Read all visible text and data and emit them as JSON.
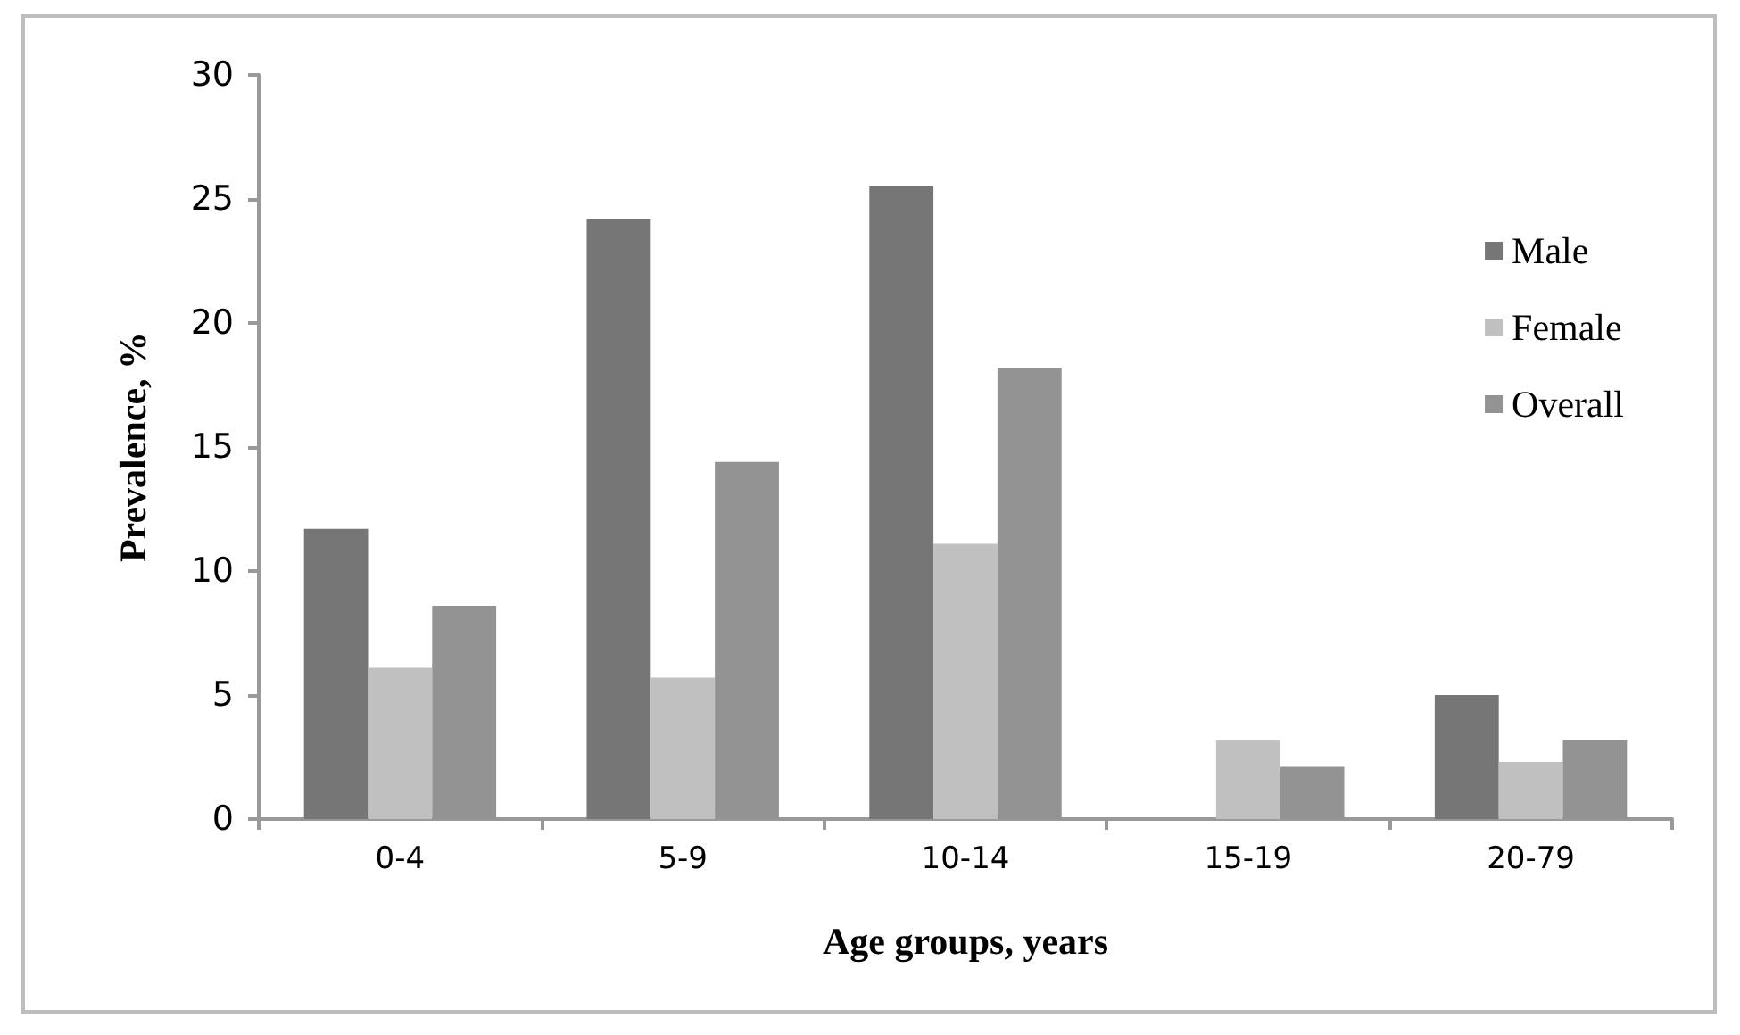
{
  "chart_data": {
    "type": "bar",
    "xlabel": "Age groups, years",
    "ylabel": "Prevalence, %",
    "categories": [
      "0-4",
      "5-9",
      "10-14",
      "15-19",
      "20-79"
    ],
    "series": [
      {
        "name": "Male",
        "color": "#767676",
        "values": [
          11.7,
          24.2,
          25.5,
          0,
          5.0
        ]
      },
      {
        "name": "Female",
        "color": "#c0c0c0",
        "values": [
          6.1,
          5.7,
          11.1,
          3.2,
          2.3
        ]
      },
      {
        "name": "Overall",
        "color": "#939393",
        "values": [
          8.6,
          14.4,
          18.2,
          2.1,
          3.2
        ]
      }
    ],
    "ylim": [
      0,
      30
    ],
    "yticks": [
      0,
      5,
      10,
      15,
      20,
      25,
      30
    ],
    "grid": false,
    "legend": "right"
  }
}
